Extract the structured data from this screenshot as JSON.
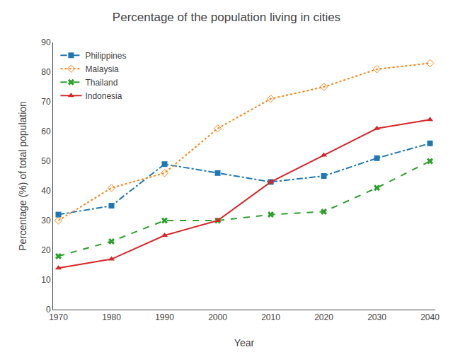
{
  "chart_data": {
    "type": "line",
    "title": "Percentage of the population living in cities",
    "xlabel": "Year",
    "ylabel": "Percentage (%) of total population",
    "x": [
      1970,
      1980,
      1990,
      2000,
      2010,
      2020,
      2030,
      2040
    ],
    "series": [
      {
        "name": "Philippines",
        "values": [
          32,
          35,
          49,
          46,
          43,
          45,
          51,
          56
        ],
        "marker": "square",
        "line_style": "dashdot"
      },
      {
        "name": "Malaysia",
        "values": [
          30,
          41,
          46,
          61,
          71,
          75,
          81,
          83
        ],
        "marker": "diamond-open",
        "line_style": "dot"
      },
      {
        "name": "Thailand",
        "values": [
          18,
          23,
          30,
          30,
          32,
          33,
          41,
          50
        ],
        "marker": "x",
        "line_style": "dash"
      },
      {
        "name": "Indonesia",
        "values": [
          14,
          17,
          25,
          30,
          43,
          52,
          61,
          64
        ],
        "marker": "triangle-up",
        "line_style": "solid"
      }
    ],
    "xlim": [
      1969,
      2041
    ],
    "xticks": [
      1970,
      1980,
      1990,
      2000,
      2010,
      2020,
      2030,
      2040
    ],
    "ylim": [
      0,
      90
    ],
    "yticks": [
      0,
      10,
      20,
      30,
      40,
      50,
      60,
      70,
      80,
      90
    ],
    "grid": false,
    "legend": "upper left"
  }
}
